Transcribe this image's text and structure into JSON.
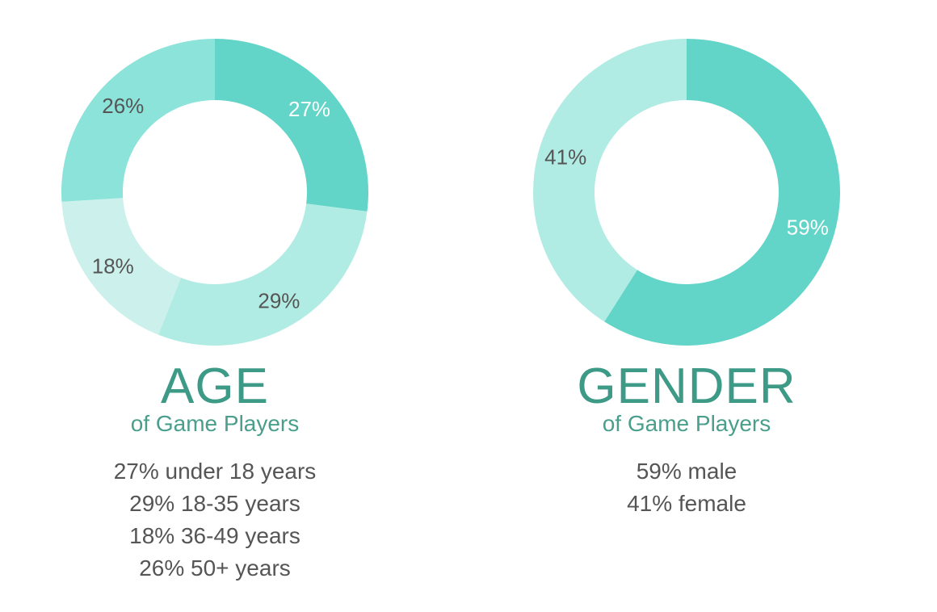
{
  "chart_data": [
    {
      "type": "pie",
      "title": "AGE",
      "subtitle": "of Game Players",
      "labels": [
        "under 18 years",
        "18-35 years",
        "36-49 years",
        "50+ years"
      ],
      "values": [
        27,
        29,
        18,
        26
      ],
      "slice_labels": [
        "27%",
        "29%",
        "18%",
        "26%"
      ],
      "colors": [
        "#62d5c8",
        "#b1ece4",
        "#ccf0eb",
        "#8be3d9"
      ],
      "label_colors": [
        "#ffffff",
        "#555555",
        "#555555",
        "#555555"
      ],
      "legend": [
        "27% under 18 years",
        "29% 18-35 years",
        "18% 36-49 years",
        "26% 50+ years"
      ]
    },
    {
      "type": "pie",
      "title": "GENDER",
      "subtitle": "of Game Players",
      "labels": [
        "male",
        "female"
      ],
      "values": [
        59,
        41
      ],
      "slice_labels": [
        "59%",
        "41%"
      ],
      "colors": [
        "#62d5c8",
        "#b1ece4"
      ],
      "label_colors": [
        "#ffffff",
        "#555555"
      ],
      "legend": [
        "59% male",
        "41% female"
      ]
    }
  ]
}
